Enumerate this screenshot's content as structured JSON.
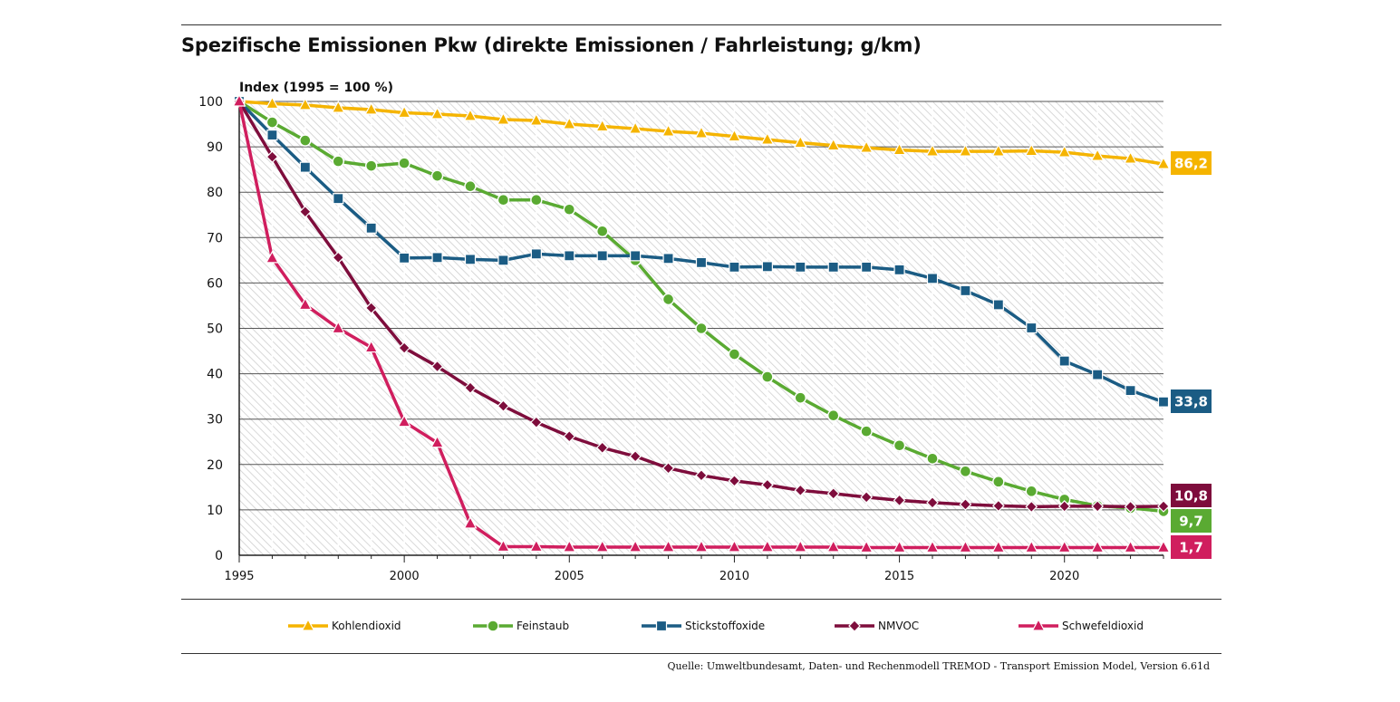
{
  "title": "Spezifische Emissionen Pkw (direkte Emissionen / Fahrleistung; g/km)",
  "source": "Quelle: Umweltbundesamt, Daten- und Rechenmodell TREMOD - Transport Emission Model, Version 6.61d",
  "chart_data": {
    "type": "line",
    "title": "Spezifische Emissionen Pkw (direkte Emissionen / Fahrleistung; g/km)",
    "ylabel": "Index (1995 = 100 %)",
    "xlabel": "",
    "ylim": [
      0,
      100
    ],
    "xlim": [
      1995,
      2023
    ],
    "yticks": [
      "0",
      "10",
      "20",
      "30",
      "40",
      "50",
      "60",
      "70",
      "80",
      "90",
      "100"
    ],
    "xticks": [
      "1995",
      "2000",
      "2005",
      "2010",
      "2015",
      "2020"
    ],
    "grid": true,
    "legend_position": "bottom",
    "x": [
      1995,
      1996,
      1997,
      1998,
      1999,
      2000,
      2001,
      2002,
      2003,
      2004,
      2005,
      2006,
      2007,
      2008,
      2009,
      2010,
      2011,
      2012,
      2013,
      2014,
      2015,
      2016,
      2017,
      2018,
      2019,
      2020,
      2021,
      2022,
      2023
    ],
    "series": [
      {
        "name": "Kohlendioxid",
        "color": "#f5b400",
        "marker": "triangle",
        "end_label": "86,2",
        "values": [
          100,
          99.5,
          99.2,
          98.6,
          98.2,
          97.5,
          97.2,
          96.8,
          96.0,
          95.8,
          95.0,
          94.5,
          94.0,
          93.4,
          93.0,
          92.3,
          91.6,
          90.9,
          90.3,
          89.8,
          89.3,
          89.0,
          89.0,
          89.0,
          89.1,
          88.8,
          88.0,
          87.4,
          86.2
        ]
      },
      {
        "name": "Feinstaub",
        "color": "#5aaa32",
        "marker": "circle",
        "end_label": "9,7",
        "values": [
          100,
          95.4,
          91.4,
          86.8,
          85.8,
          86.4,
          83.6,
          81.3,
          78.3,
          78.3,
          76.2,
          71.4,
          65.0,
          56.4,
          50.0,
          44.3,
          39.3,
          34.7,
          30.8,
          27.3,
          24.2,
          21.3,
          18.5,
          16.2,
          14.1,
          12.3,
          10.9,
          10.4,
          9.7
        ]
      },
      {
        "name": "Stickstoffoxide",
        "color": "#1b5c84",
        "marker": "square",
        "end_label": "33,8",
        "values": [
          100,
          92.6,
          85.5,
          78.6,
          72.1,
          65.5,
          65.6,
          65.2,
          65.0,
          66.4,
          66.0,
          66.0,
          66.0,
          65.4,
          64.5,
          63.5,
          63.6,
          63.5,
          63.5,
          63.5,
          62.9,
          61.0,
          58.3,
          55.2,
          50.1,
          42.8,
          39.8,
          36.3,
          33.8
        ]
      },
      {
        "name": "NMVOC",
        "color": "#7e0d3c",
        "marker": "diamond",
        "end_label": "10,8",
        "values": [
          100,
          87.8,
          75.7,
          65.6,
          54.5,
          45.7,
          41.6,
          36.9,
          32.9,
          29.3,
          26.2,
          23.7,
          21.8,
          19.2,
          17.6,
          16.4,
          15.5,
          14.3,
          13.6,
          12.8,
          12.1,
          11.6,
          11.2,
          10.9,
          10.7,
          10.8,
          10.8,
          10.7,
          10.8
        ]
      },
      {
        "name": "Schwefeldioxid",
        "color": "#d01e5e",
        "marker": "triangle",
        "end_label": "1,7",
        "values": [
          100,
          65.5,
          55.2,
          50.0,
          45.8,
          29.4,
          24.8,
          7.0,
          1.9,
          1.9,
          1.8,
          1.8,
          1.8,
          1.8,
          1.8,
          1.8,
          1.8,
          1.8,
          1.8,
          1.7,
          1.7,
          1.7,
          1.7,
          1.7,
          1.7,
          1.7,
          1.7,
          1.7,
          1.7
        ]
      }
    ]
  },
  "colors": {
    "axis": "#222222",
    "gridline": "#444444",
    "hatch": "#c8c8c8",
    "Kohlendioxid": "#f5b400",
    "Feinstaub": "#5aaa32",
    "Stickstoffoxide": "#1b5c84",
    "NMVOC": "#7e0d3c",
    "Schwefeldioxid": "#d01e5e"
  }
}
